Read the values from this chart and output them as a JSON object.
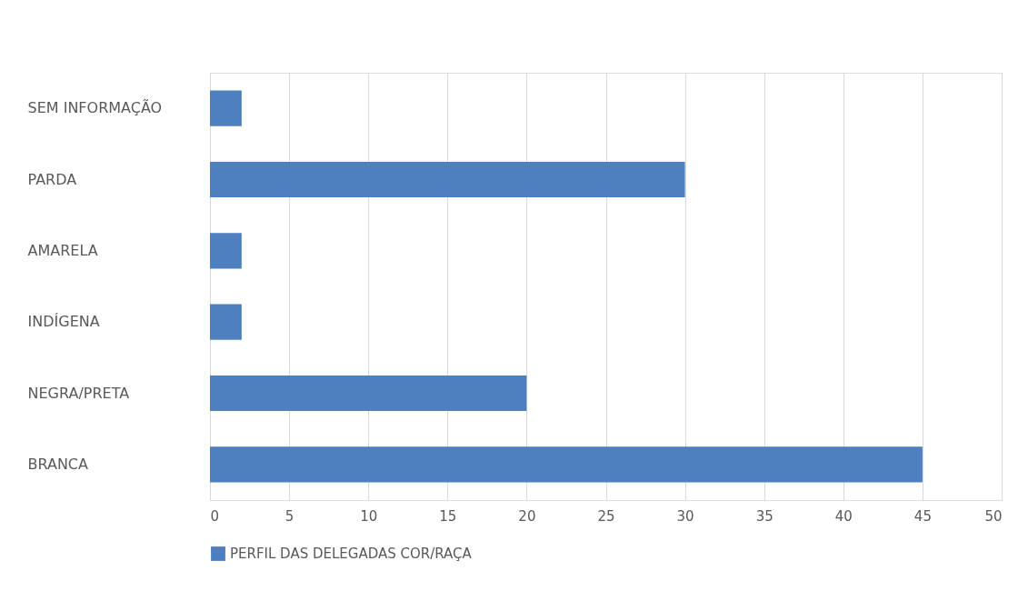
{
  "chart_data": {
    "type": "bar",
    "orientation": "horizontal",
    "categories": [
      "SEM INFORMAÇÃO",
      "PARDA",
      "AMARELA",
      "INDÍGENA",
      "NEGRA/PRETA",
      "BRANCA"
    ],
    "series": [
      {
        "name": "PERFIL DAS DELEGADAS COR/RAÇA",
        "color": "#4e7fbe",
        "values": [
          2,
          30,
          2,
          2,
          20,
          45
        ]
      }
    ],
    "xlim": [
      0,
      50
    ],
    "xticks": [
      0,
      5,
      10,
      15,
      20,
      25,
      30,
      35,
      40,
      45,
      50
    ],
    "grid": "x",
    "legend": "bottom"
  }
}
